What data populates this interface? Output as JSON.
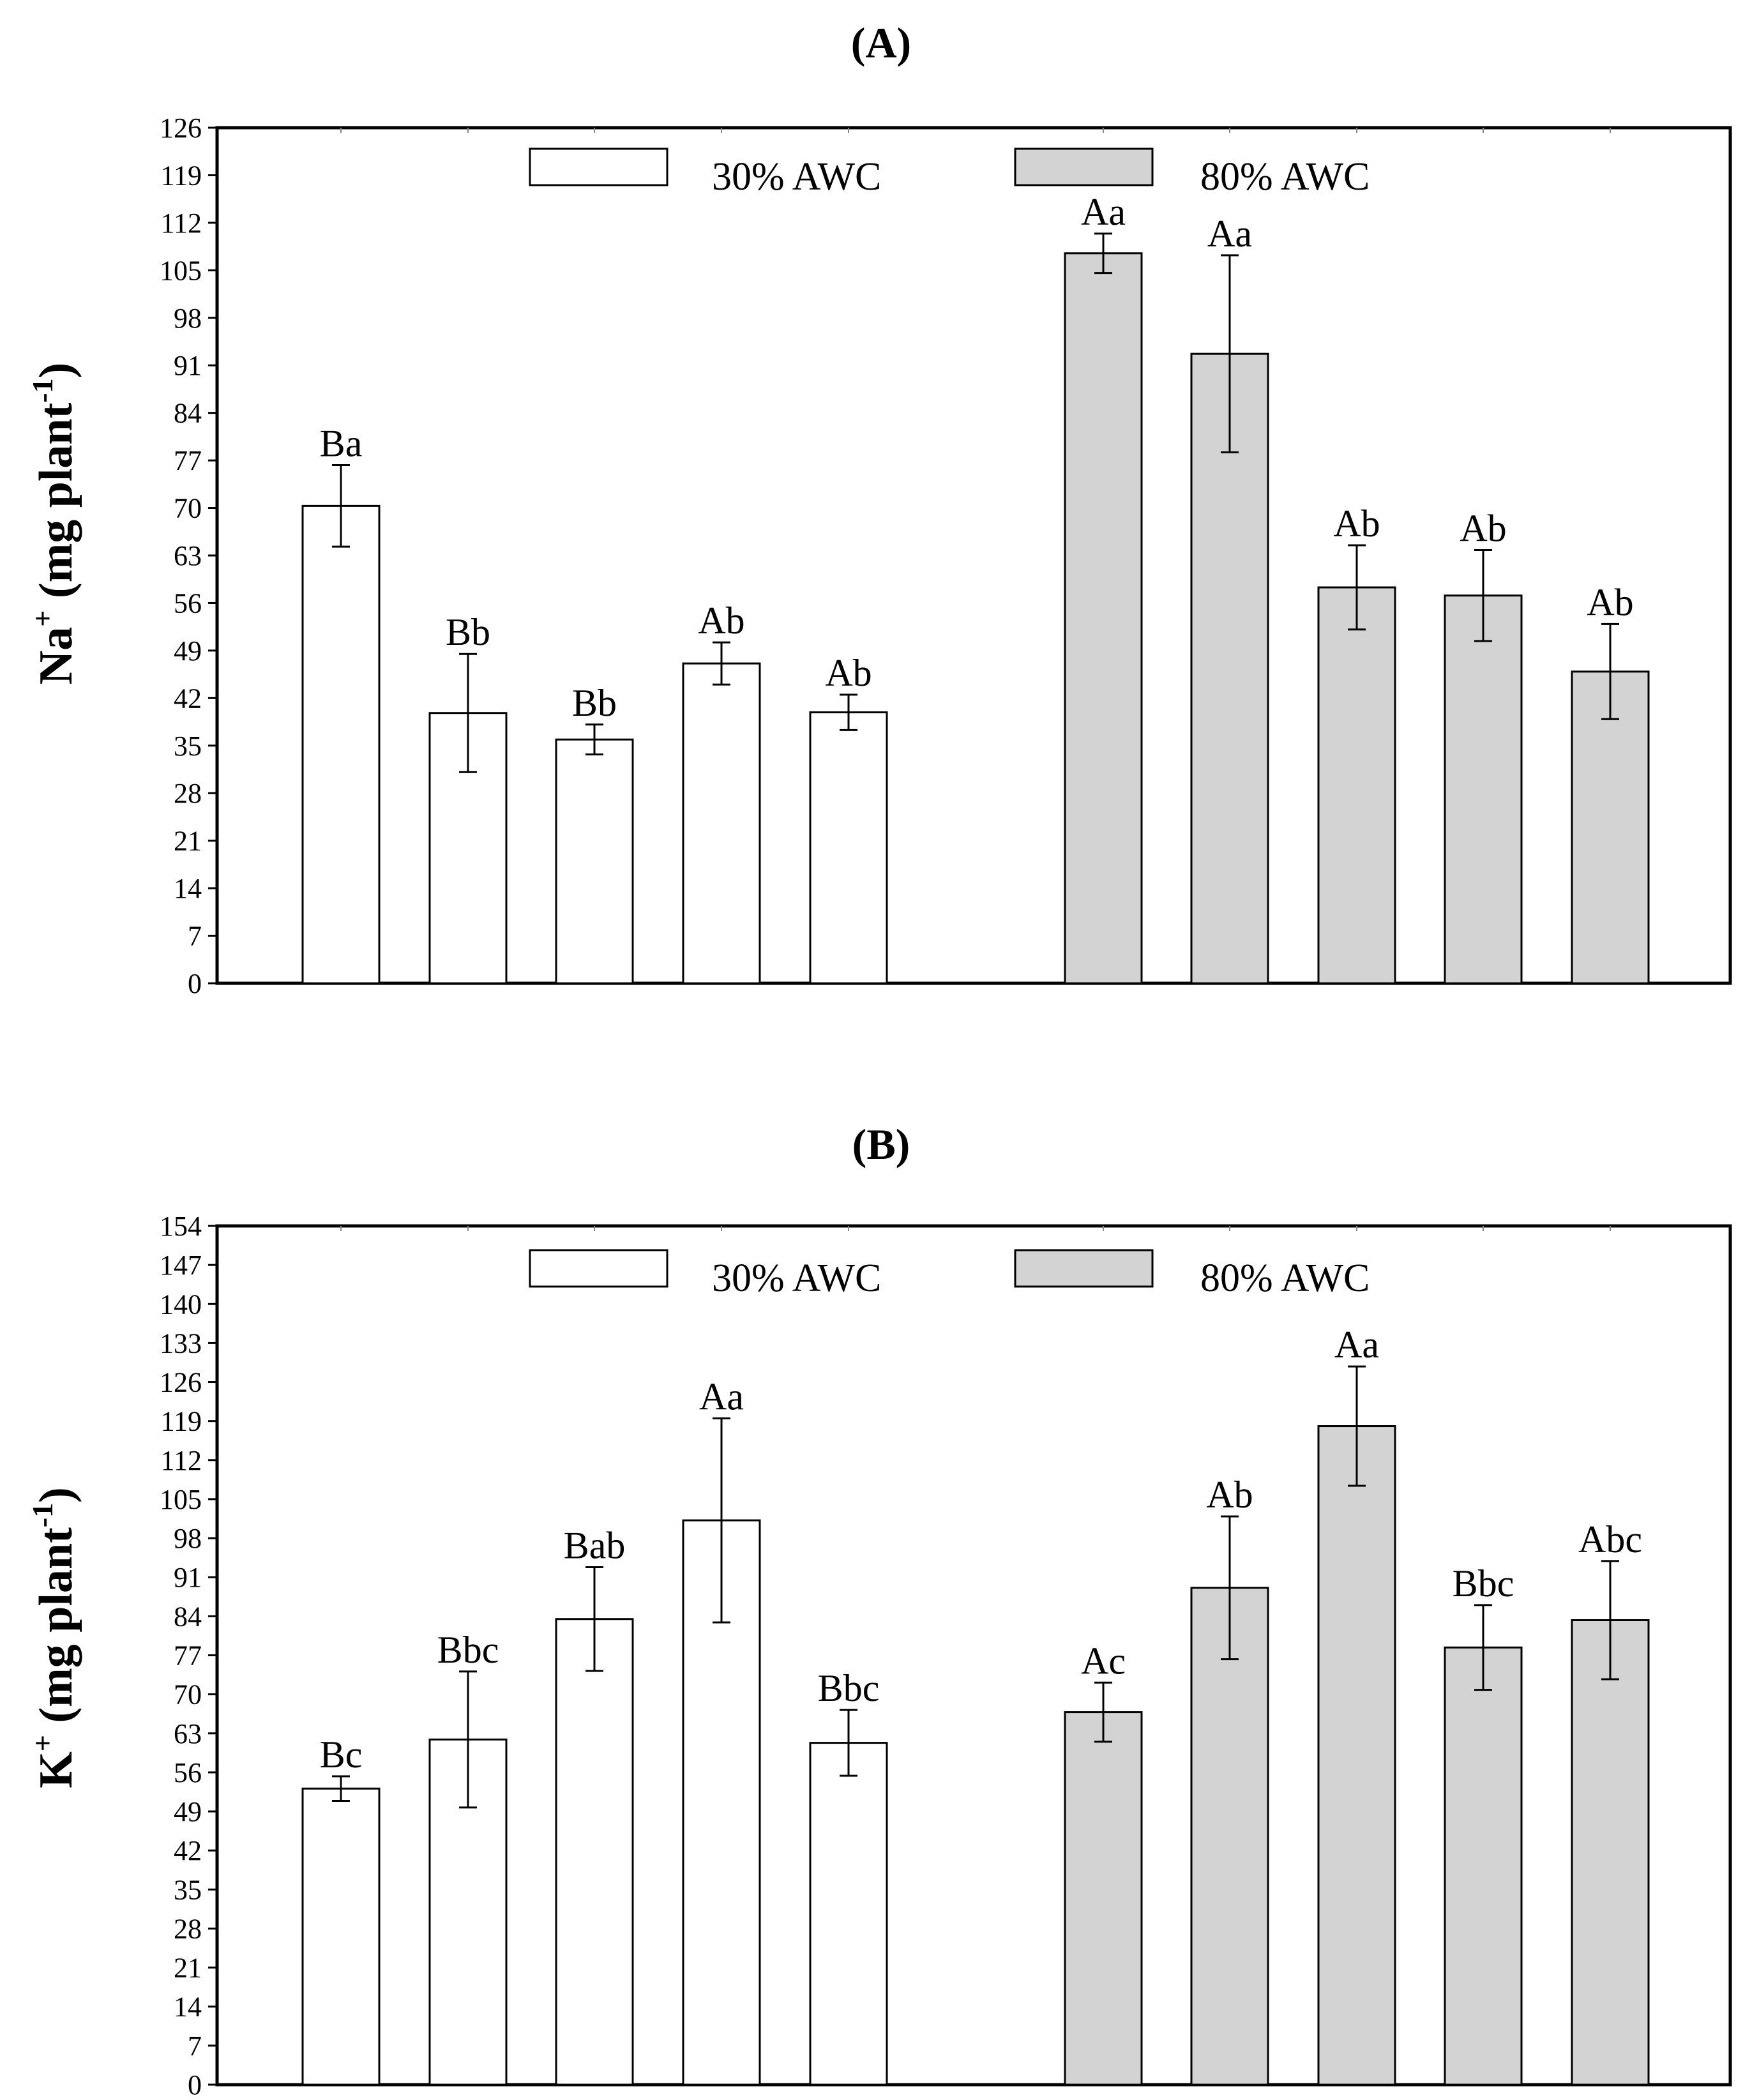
{
  "colors": {
    "bar_30": "#ffffff",
    "bar_80": "#d3d3d3",
    "stroke": "#000000"
  },
  "chart_data": [
    {
      "type": "bar",
      "panel_label": "A",
      "title": "(A)",
      "ylabel": {
        "ion": "Na",
        "charge": "+",
        "unit": " (mg plant",
        "exp": "-1",
        "close": ")"
      },
      "ylim": [
        0,
        126
      ],
      "yticks": [
        0,
        7,
        14,
        21,
        28,
        35,
        42,
        49,
        56,
        63,
        70,
        77,
        84,
        91,
        98,
        105,
        112,
        119,
        126
      ],
      "legend": [
        "30% AWC",
        "80% AWC"
      ],
      "series": [
        {
          "name": "30% AWC",
          "values": [
            70.3,
            39.8,
            35.9,
            47.1,
            39.9
          ],
          "errors": [
            6.0,
            8.7,
            2.2,
            3.1,
            2.6
          ],
          "letters": [
            "Ba",
            "Bb",
            "Bb",
            "Ab",
            "Ab"
          ]
        },
        {
          "name": "80% AWC",
          "values": [
            107.5,
            92.7,
            58.3,
            57.1,
            45.9
          ],
          "errors": [
            2.9,
            14.5,
            6.2,
            6.7,
            7.0
          ],
          "letters": [
            "Aa",
            "Aa",
            "Ab",
            "Ab",
            "Ab"
          ]
        }
      ]
    },
    {
      "type": "bar",
      "panel_label": "B",
      "title": "(B)",
      "ylabel": {
        "ion": "K",
        "charge": "+",
        "unit": " (mg plant",
        "exp": "-1",
        "close": ")"
      },
      "ylim": [
        0,
        154
      ],
      "yticks": [
        0,
        7,
        14,
        21,
        28,
        35,
        42,
        49,
        56,
        63,
        70,
        77,
        84,
        91,
        98,
        105,
        112,
        119,
        126,
        133,
        140,
        147,
        154
      ],
      "legend": [
        "30% AWC",
        "80% AWC"
      ],
      "series": [
        {
          "name": "30% AWC",
          "values": [
            53.1,
            61.9,
            83.5,
            101.2,
            61.3
          ],
          "errors": [
            2.2,
            12.2,
            9.3,
            18.3,
            5.9
          ],
          "letters": [
            "Bc",
            "Bbc",
            "Bab",
            "Aa",
            "Bbc"
          ]
        },
        {
          "name": "80% AWC",
          "values": [
            66.8,
            89.1,
            118.1,
            78.4,
            83.3
          ],
          "errors": [
            5.3,
            12.8,
            10.7,
            7.6,
            10.6
          ],
          "letters": [
            "Ac",
            "Ab",
            "Aa",
            "Bbc",
            "Abc"
          ]
        }
      ]
    }
  ]
}
